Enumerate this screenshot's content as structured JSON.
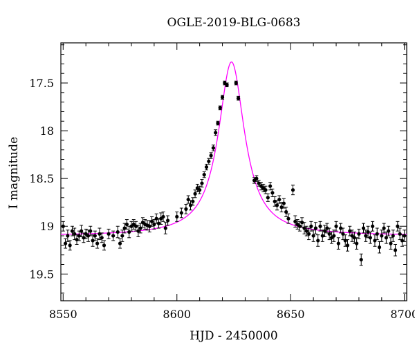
{
  "chart_data": {
    "type": "scatter",
    "title": "OGLE-2019-BLG-0683",
    "xlabel": "HJD - 2450000",
    "ylabel": "I magnitude",
    "xlim": [
      8549,
      8701
    ],
    "ylim": [
      19.78,
      17.08
    ],
    "y_inverted": true,
    "x_ticks": [
      8550,
      8600,
      8650,
      8700
    ],
    "y_ticks": [
      17.5,
      18,
      18.5,
      19,
      19.5
    ],
    "x_tick_labels": [
      "8550",
      "8600",
      "8650",
      "8700"
    ],
    "y_tick_labels": [
      "17.5",
      "18",
      "18.5",
      "19",
      "19.5"
    ],
    "grid": false,
    "series": [
      {
        "kind": "points_with_errorbars",
        "color": "#000000",
        "x": [
          8550,
          8551,
          8552,
          8553,
          8554,
          8555,
          8556,
          8557,
          8558,
          8559,
          8560,
          8561,
          8562,
          8563,
          8564,
          8565,
          8566,
          8567,
          8568,
          8570,
          8572,
          8574,
          8575,
          8576,
          8577,
          8578,
          8579,
          8580,
          8581,
          8582,
          8583,
          8584,
          8585,
          8586,
          8587,
          8588,
          8589,
          8590,
          8591,
          8592,
          8593,
          8594,
          8595,
          8596,
          8600,
          8602,
          8604,
          8605,
          8606,
          8607,
          8608,
          8609,
          8610,
          8611,
          8612,
          8613,
          8614,
          8615,
          8616,
          8617,
          8618,
          8619,
          8620,
          8621,
          8622,
          8626,
          8627,
          8634,
          8635,
          8636,
          8637,
          8638,
          8639,
          8640,
          8641,
          8642,
          8643,
          8644,
          8645,
          8646,
          8647,
          8648,
          8649,
          8651,
          8652,
          8653,
          8654,
          8655,
          8656,
          8657,
          8658,
          8659,
          8660,
          8661,
          8662,
          8663,
          8664,
          8665,
          8666,
          8667,
          8668,
          8669,
          8670,
          8671,
          8672,
          8673,
          8674,
          8675,
          8676,
          8677,
          8678,
          8679,
          8680,
          8681,
          8682,
          8683,
          8684,
          8685,
          8686,
          8687,
          8688,
          8689,
          8690,
          8691,
          8692,
          8693,
          8694,
          8695,
          8696,
          8697,
          8698,
          8699,
          8700
        ],
        "y": [
          19.0,
          19.18,
          19.1,
          19.2,
          19.05,
          19.08,
          19.14,
          19.1,
          19.05,
          19.12,
          19.08,
          19.1,
          19.05,
          19.15,
          19.1,
          19.18,
          19.08,
          19.12,
          19.2,
          19.08,
          19.1,
          19.06,
          19.18,
          19.1,
          19.02,
          18.98,
          19.06,
          19.0,
          18.98,
          19.0,
          19.05,
          19.02,
          18.96,
          18.98,
          18.99,
          19.0,
          18.95,
          18.98,
          18.92,
          18.97,
          18.92,
          18.9,
          19.02,
          18.94,
          18.9,
          18.86,
          18.82,
          18.72,
          18.78,
          18.74,
          18.66,
          18.6,
          18.62,
          18.55,
          18.46,
          18.38,
          18.32,
          18.26,
          18.18,
          18.02,
          17.92,
          17.76,
          17.65,
          17.5,
          17.52,
          17.5,
          17.66,
          18.52,
          18.5,
          18.55,
          18.58,
          18.6,
          18.62,
          18.7,
          18.58,
          18.65,
          18.74,
          18.78,
          18.72,
          18.8,
          18.76,
          18.85,
          18.92,
          18.62,
          18.95,
          18.98,
          19.0,
          18.96,
          19.02,
          19.05,
          19.08,
          19.0,
          19.1,
          19.02,
          19.15,
          19.0,
          19.1,
          19.05,
          19.02,
          19.08,
          19.12,
          19.1,
          19.0,
          19.18,
          19.02,
          19.08,
          19.15,
          19.2,
          19.05,
          19.1,
          19.12,
          19.18,
          19.08,
          19.35,
          19.02,
          19.1,
          19.06,
          19.12,
          19.0,
          19.15,
          19.08,
          19.22,
          19.1,
          19.02,
          19.12,
          19.05,
          19.18,
          19.1,
          19.25,
          19.0,
          19.08,
          19.15,
          19.1
        ],
        "err": [
          0.05,
          0.05,
          0.06,
          0.05,
          0.05,
          0.06,
          0.05,
          0.05,
          0.06,
          0.05,
          0.05,
          0.06,
          0.05,
          0.06,
          0.05,
          0.05,
          0.06,
          0.05,
          0.05,
          0.05,
          0.05,
          0.06,
          0.05,
          0.06,
          0.05,
          0.05,
          0.06,
          0.05,
          0.05,
          0.05,
          0.06,
          0.05,
          0.05,
          0.05,
          0.05,
          0.06,
          0.05,
          0.05,
          0.05,
          0.05,
          0.06,
          0.05,
          0.06,
          0.05,
          0.05,
          0.05,
          0.05,
          0.04,
          0.05,
          0.04,
          0.04,
          0.04,
          0.04,
          0.04,
          0.03,
          0.03,
          0.03,
          0.03,
          0.03,
          0.03,
          0.02,
          0.02,
          0.02,
          0.02,
          0.02,
          0.02,
          0.02,
          0.03,
          0.03,
          0.03,
          0.04,
          0.04,
          0.04,
          0.04,
          0.04,
          0.04,
          0.05,
          0.05,
          0.04,
          0.05,
          0.05,
          0.05,
          0.05,
          0.05,
          0.06,
          0.05,
          0.05,
          0.05,
          0.06,
          0.05,
          0.06,
          0.05,
          0.06,
          0.06,
          0.06,
          0.05,
          0.06,
          0.06,
          0.05,
          0.06,
          0.06,
          0.06,
          0.05,
          0.06,
          0.05,
          0.06,
          0.06,
          0.06,
          0.05,
          0.06,
          0.06,
          0.06,
          0.05,
          0.06,
          0.05,
          0.06,
          0.06,
          0.06,
          0.05,
          0.06,
          0.06,
          0.06,
          0.06,
          0.05,
          0.06,
          0.05,
          0.06,
          0.06,
          0.06,
          0.05,
          0.06,
          0.06,
          0.06
        ]
      },
      {
        "kind": "model_curve",
        "color": "#ff00ff",
        "peak_x": 8624,
        "peak_y": 17.28,
        "baseline_y": 19.1,
        "width": 7
      }
    ]
  }
}
